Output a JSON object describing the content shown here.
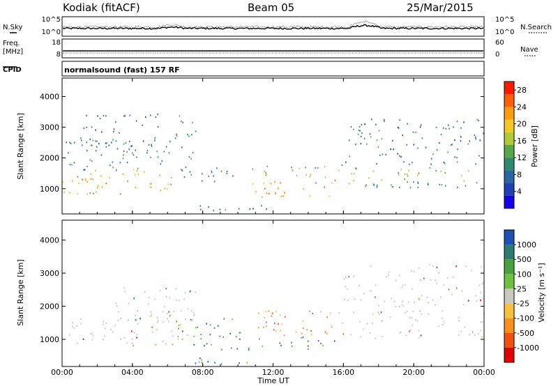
{
  "header": {
    "station": "Kodiak (fitACF)",
    "beam": "Beam 05",
    "date": "25/Mar/2015"
  },
  "panels": {
    "noise": {
      "left_label": "N.Sky",
      "right_label": "N.Search",
      "left_ticks": [
        "10^5",
        "10^0"
      ],
      "right_ticks": [
        "10^5",
        "10^0"
      ]
    },
    "freq": {
      "left_label_1": "Freq.",
      "left_label_2": "[MHz]",
      "right_label": "Nave",
      "left_ticks": [
        "18",
        "8"
      ],
      "right_ticks": [
        "60",
        "0"
      ]
    },
    "cpid": {
      "label": "CPID",
      "value": "normalsound (fast) 157 RF"
    }
  },
  "chart_data": [
    {
      "type": "heatmap",
      "title": "",
      "xlabel": "Time UT",
      "ylabel": "Slant Range [km]",
      "x_ticks": [
        "00:00",
        "04:00",
        "08:00",
        "12:00",
        "16:00",
        "20:00",
        "00:00"
      ],
      "y_ticks": [
        "1000",
        "2000",
        "3000",
        "4000"
      ],
      "xlim_hours": [
        0,
        24
      ],
      "ylim_km": [
        180,
        4600
      ],
      "colorbar": {
        "label": "Power [dB]",
        "ticks": [
          "4",
          "8",
          "12",
          "16",
          "20",
          "24",
          "28"
        ],
        "range": [
          0,
          30
        ],
        "colors": [
          "#1500ee",
          "#203fb2",
          "#2b66a4",
          "#2e8a6e",
          "#5aa44b",
          "#b0c83a",
          "#f3c92a",
          "#ff9a13",
          "#ff5f0a",
          "#ff1a00"
        ]
      },
      "regions": [
        {
          "t": [
            0.0,
            6.3
          ],
          "r": [
            820,
            1700
          ],
          "core": 1250,
          "v": 24
        },
        {
          "t": [
            0.2,
            6.3
          ],
          "r": [
            1600,
            2600
          ],
          "v": 10
        },
        {
          "t": [
            1.0,
            5.6
          ],
          "r": [
            2400,
            3500
          ],
          "v": 8
        },
        {
          "t": [
            6.3,
            7.6
          ],
          "r": [
            1400,
            3400
          ],
          "v": 11
        },
        {
          "t": [
            7.8,
            9.7
          ],
          "r": [
            1100,
            1700
          ],
          "v": 10
        },
        {
          "t": [
            7.0,
            11.8
          ],
          "r": [
            280,
            520
          ],
          "v": 9
        },
        {
          "t": [
            10.8,
            15.8
          ],
          "r": [
            750,
            1750
          ],
          "core": 1100,
          "v": 25
        },
        {
          "t": [
            15.7,
            24.0
          ],
          "r": [
            1050,
            1900
          ],
          "core": 1450,
          "v": 17
        },
        {
          "t": [
            16.3,
            24.0
          ],
          "r": [
            2000,
            3300
          ],
          "v": 9
        }
      ]
    },
    {
      "type": "heatmap",
      "title": "",
      "xlabel": "Time UT",
      "ylabel": "Slant Range [km]",
      "x_ticks": [
        "00:00",
        "04:00",
        "08:00",
        "12:00",
        "16:00",
        "20:00",
        "00:00"
      ],
      "y_ticks": [
        "1000",
        "2000",
        "3000",
        "4000"
      ],
      "xlim_hours": [
        0,
        24
      ],
      "ylim_km": [
        180,
        4600
      ],
      "colorbar": {
        "label": "Velocity [m s⁻¹]",
        "ticks": [
          "1000",
          "500",
          "100",
          "25",
          "-25",
          "-100",
          "-500",
          "-1000"
        ],
        "colors": [
          "#2050b0",
          "#2f7a70",
          "#4aa040",
          "#70c040",
          "#c8c8c0",
          "#f8c040",
          "#f89020",
          "#f05010",
          "#e00000"
        ]
      },
      "regions": [
        {
          "t": [
            0.0,
            6.3
          ],
          "r": [
            820,
            1700
          ],
          "v": "ground"
        },
        {
          "t": [
            3.0,
            7.6
          ],
          "r": [
            1600,
            2600
          ],
          "v": "ground"
        },
        {
          "t": [
            6.0,
            7.2
          ],
          "r": [
            900,
            1600
          ],
          "v": "mixed"
        },
        {
          "t": [
            7.2,
            10.8
          ],
          "r": [
            700,
            1700
          ],
          "v": "positive"
        },
        {
          "t": [
            7.2,
            10.8
          ],
          "r": [
            250,
            550
          ],
          "v": "positive"
        },
        {
          "t": [
            10.8,
            15.5
          ],
          "r": [
            1100,
            1900
          ],
          "v": "negative"
        },
        {
          "t": [
            10.8,
            15.5
          ],
          "r": [
            700,
            1100
          ],
          "v": "positive"
        },
        {
          "t": [
            15.5,
            24.0
          ],
          "r": [
            1050,
            1900
          ],
          "v": "ground"
        },
        {
          "t": [
            16.0,
            24.0
          ],
          "r": [
            2000,
            3300
          ],
          "v": "ground"
        }
      ]
    }
  ]
}
